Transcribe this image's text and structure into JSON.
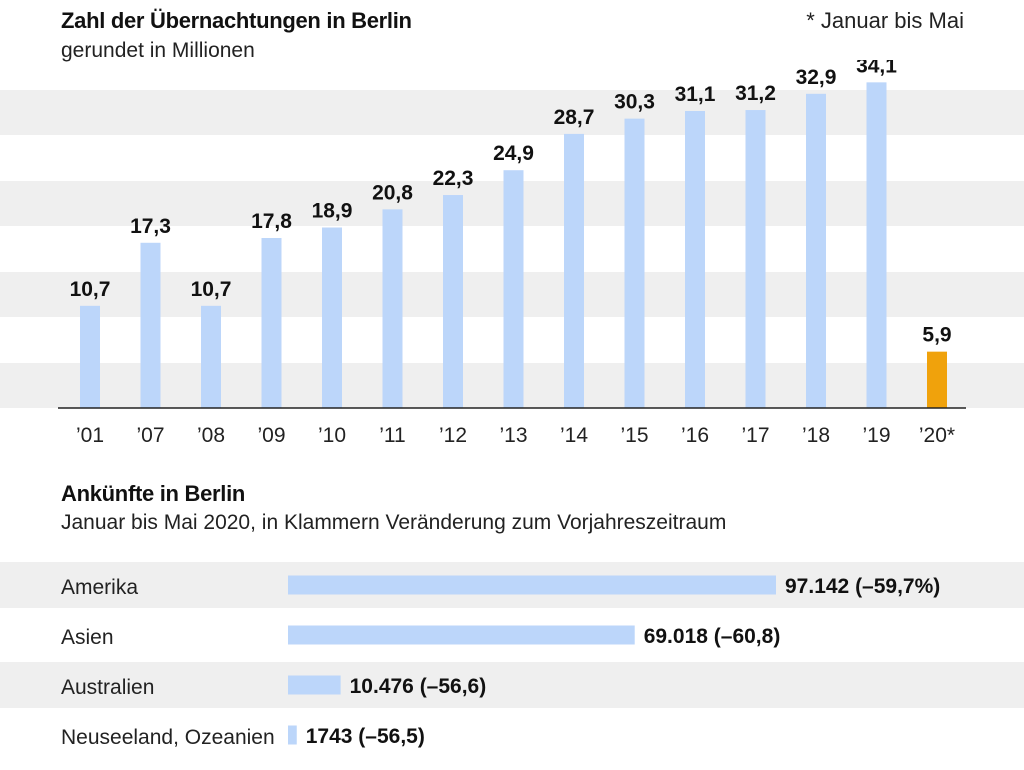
{
  "chart_data": [
    {
      "type": "bar",
      "title": "Zahl der Übernachtungen in Berlin",
      "subtitle": "gerundet in Millionen",
      "footnote": "* Januar bis Mai",
      "categories": [
        "’01",
        "’07",
        "’08",
        "’09",
        "’10",
        "’11",
        "’12",
        "’13",
        "’14",
        "’15",
        "’16",
        "’17",
        "’18",
        "’19",
        "’20*"
      ],
      "values": [
        10.7,
        17.3,
        10.7,
        17.8,
        18.9,
        20.8,
        22.3,
        24.9,
        28.7,
        30.3,
        31.1,
        31.2,
        32.9,
        34.1,
        5.9
      ],
      "value_labels": [
        "10,7",
        "17,3",
        "10,7",
        "17,8",
        "18,9",
        "20,8",
        "22,3",
        "24,9",
        "28,7",
        "30,3",
        "31,1",
        "31,2",
        "32,9",
        "34,1",
        "5,9"
      ],
      "highlight_index": 14,
      "ylim": [
        0,
        35
      ],
      "grid": "alternating horizontal bands",
      "colors": {
        "bar": "#bcd6fa",
        "highlight": "#f0a20c",
        "band": "#efefef",
        "axis": "#222222"
      }
    },
    {
      "type": "bar",
      "orientation": "horizontal",
      "title": "Ankünfte in Berlin",
      "subtitle": "Januar bis Mai 2020, in Klammern Veränderung zum Vorjahreszeitraum",
      "categories": [
        "Amerika",
        "Asien",
        "Australien",
        "Neuseeland, Ozeanien"
      ],
      "values": [
        97142,
        69018,
        10476,
        1743
      ],
      "value_labels": [
        "97.142 (–59,7%)",
        "69.018 (–60,8)",
        "10.476 (–56,6)",
        "1743 (–56,5)"
      ],
      "xlim": [
        0,
        97142
      ],
      "colors": {
        "bar": "#bcd6fa",
        "band": "#efefef"
      }
    }
  ]
}
